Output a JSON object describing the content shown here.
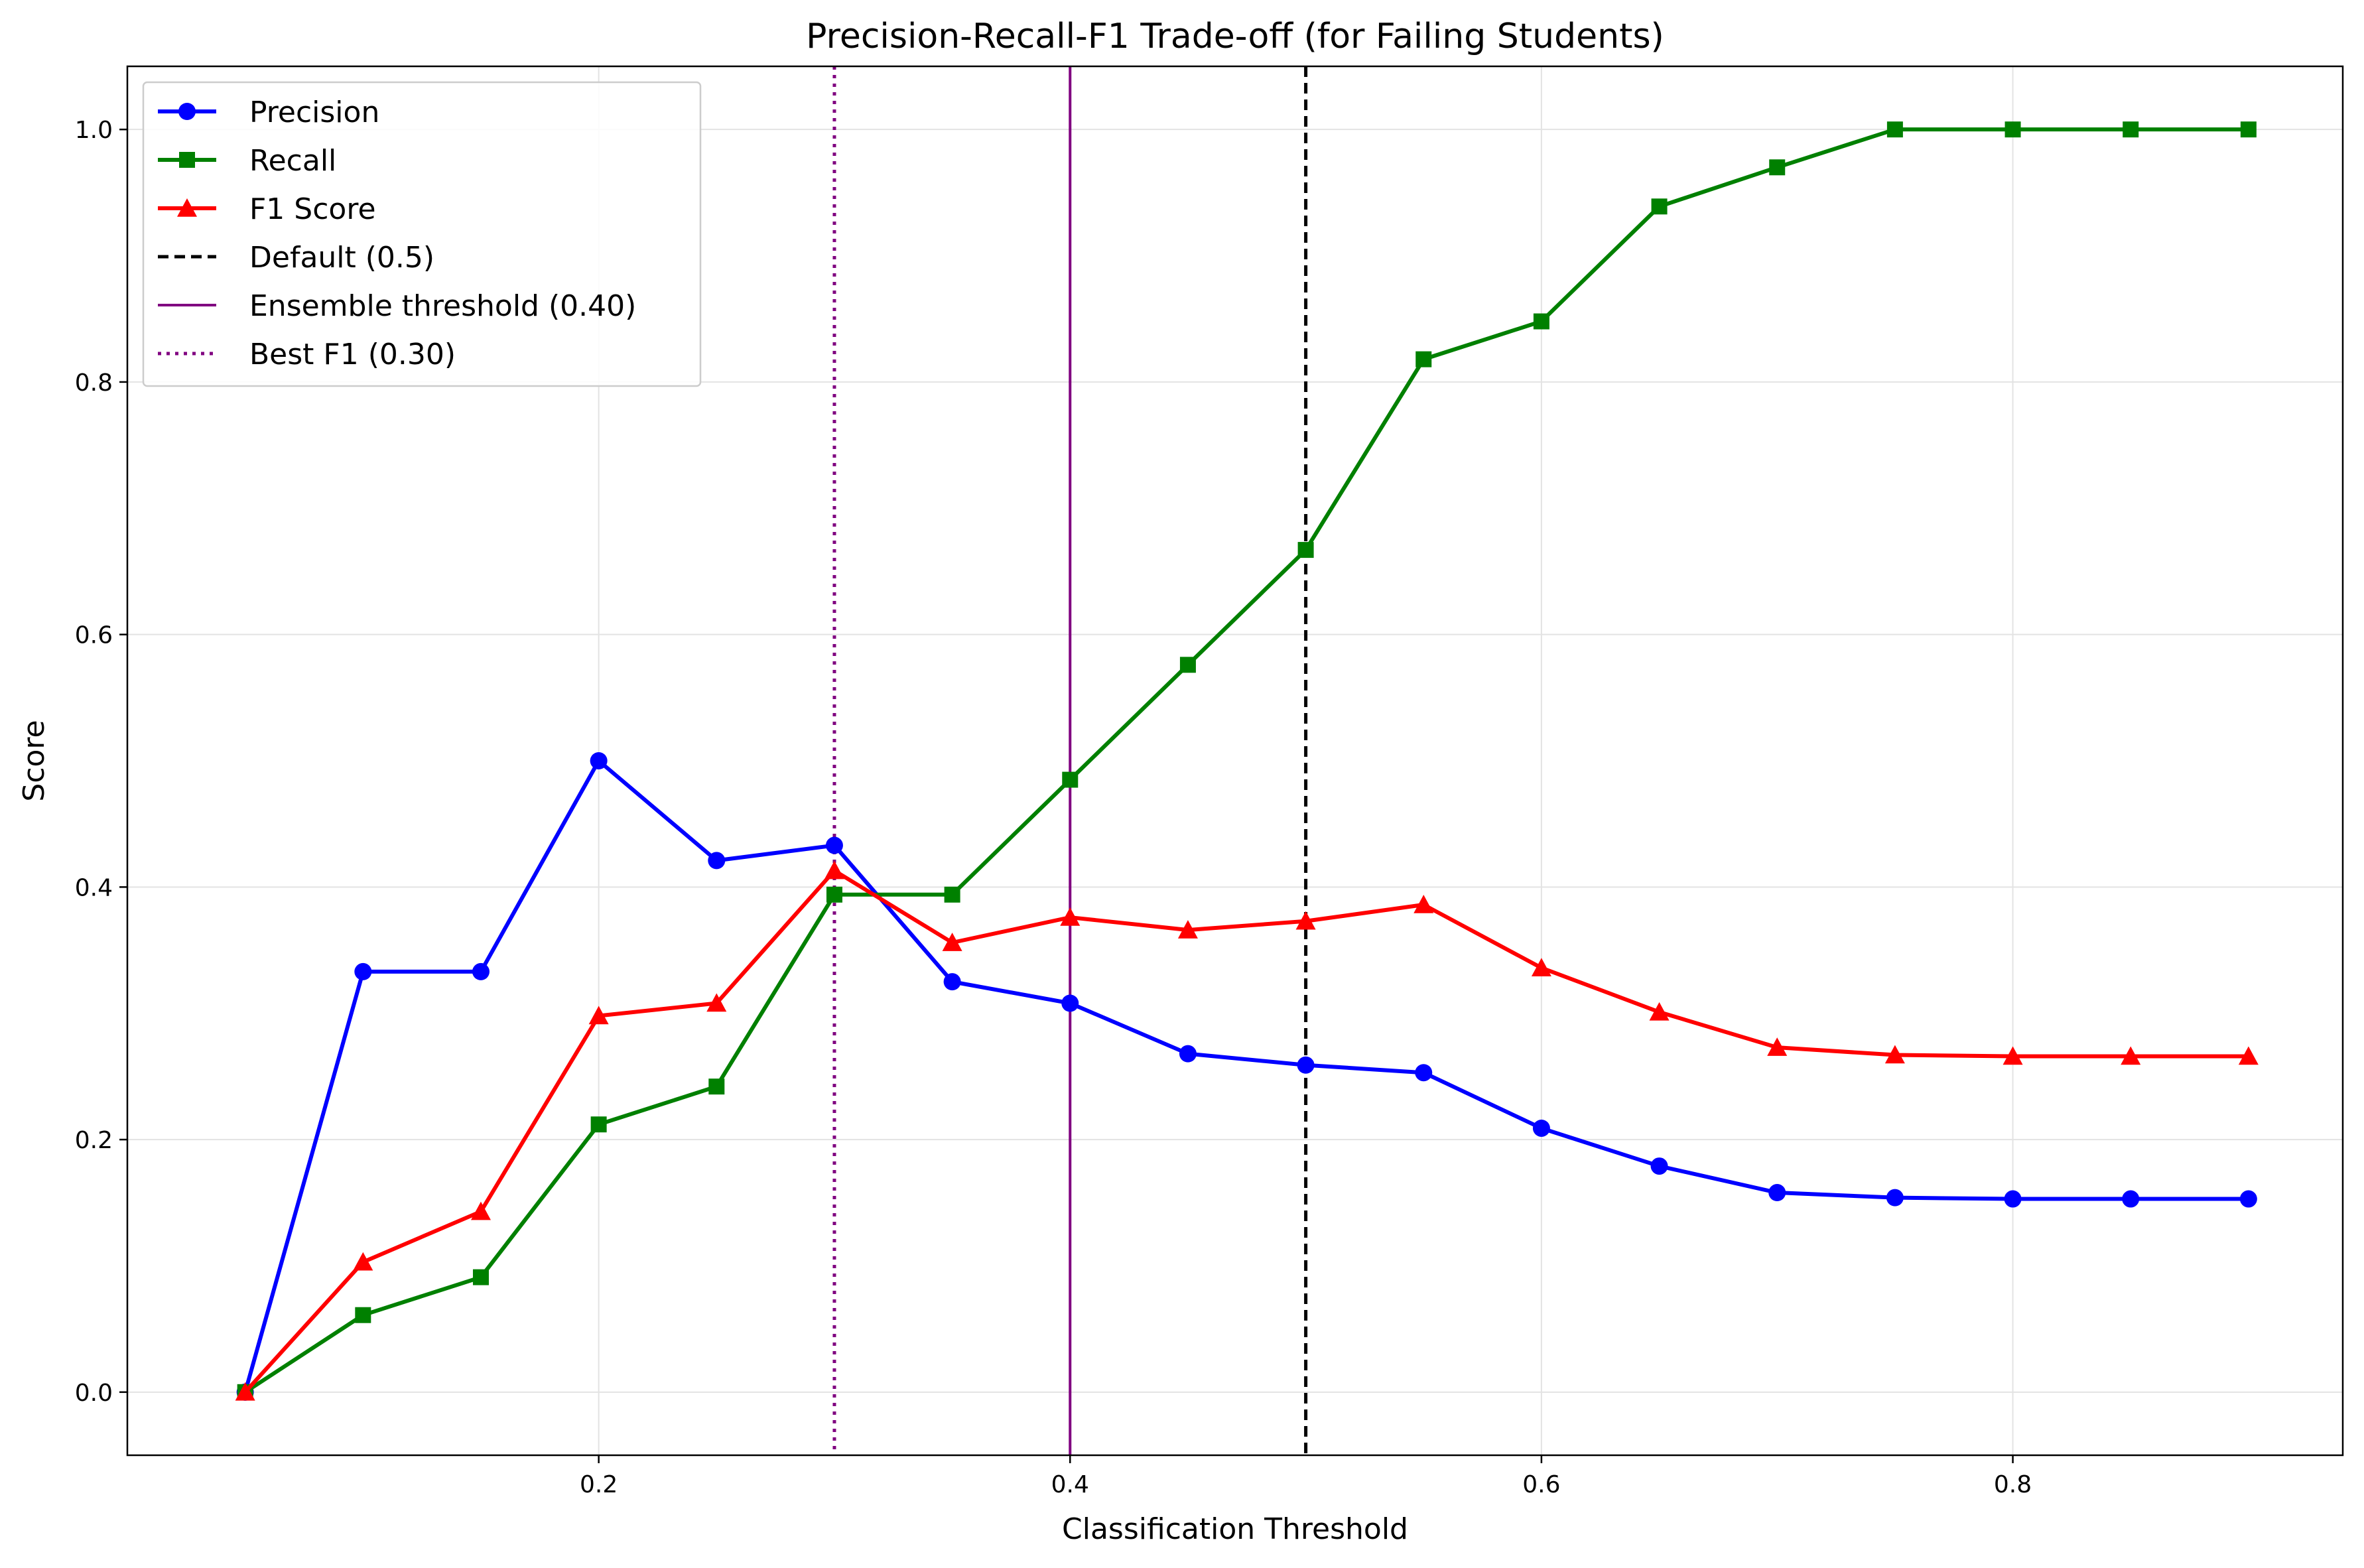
{
  "chart_data": {
    "type": "line",
    "title": "Precision-Recall-F1 Trade-off (for Failing Students)",
    "xlabel": "Classification Threshold",
    "ylabel": "Score",
    "xlim": [
      0.0,
      0.94
    ],
    "ylim": [
      -0.05,
      1.05
    ],
    "xticks": [
      0.2,
      0.4,
      0.6,
      0.8
    ],
    "xtick_labels": [
      "0.2",
      "0.4",
      "0.6",
      "0.8"
    ],
    "yticks": [
      0.0,
      0.2,
      0.4,
      0.6,
      0.8,
      1.0
    ],
    "ytick_labels": [
      "0.0",
      "0.2",
      "0.4",
      "0.6",
      "0.8",
      "1.0"
    ],
    "grid": true,
    "legend_position": "top-left",
    "x": [
      0.05,
      0.1,
      0.15,
      0.2,
      0.25,
      0.3,
      0.35,
      0.4,
      0.45,
      0.5,
      0.55,
      0.6,
      0.65,
      0.7,
      0.75,
      0.8,
      0.85,
      0.9
    ],
    "series": [
      {
        "name": "Precision",
        "color": "#0000ff",
        "marker": "circle",
        "values": [
          0.0,
          0.333,
          0.333,
          0.5,
          0.421,
          0.433,
          0.325,
          0.308,
          0.268,
          0.259,
          0.253,
          0.209,
          0.179,
          0.158,
          0.154,
          0.153,
          0.153,
          0.153
        ]
      },
      {
        "name": "Recall",
        "color": "#008000",
        "marker": "square",
        "values": [
          0.0,
          0.061,
          0.091,
          0.212,
          0.242,
          0.394,
          0.394,
          0.485,
          0.576,
          0.667,
          0.818,
          0.848,
          0.939,
          0.97,
          1.0,
          1.0,
          1.0,
          1.0
        ]
      },
      {
        "name": "F1 Score",
        "color": "#ff0000",
        "marker": "triangle",
        "values": [
          0.0,
          0.103,
          0.143,
          0.298,
          0.308,
          0.413,
          0.356,
          0.376,
          0.366,
          0.373,
          0.386,
          0.336,
          0.301,
          0.273,
          0.267,
          0.266,
          0.266,
          0.266
        ]
      }
    ],
    "reference_lines": [
      {
        "name": "Default (0.5)",
        "x": 0.5,
        "color": "#000000",
        "style": "dashed"
      },
      {
        "name": "Ensemble threshold (0.40)",
        "x": 0.4,
        "color": "#800080",
        "style": "solid"
      },
      {
        "name": "Best F1 (0.30)",
        "x": 0.3,
        "color": "#800080",
        "style": "dotted"
      }
    ]
  }
}
